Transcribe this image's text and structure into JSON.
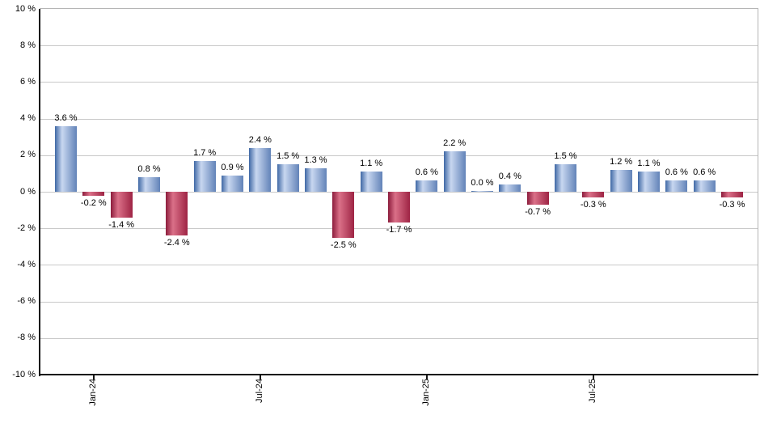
{
  "chart_data": {
    "type": "bar",
    "title": "",
    "unit": "%",
    "ylim": [
      -10,
      10
    ],
    "y_tick_step": 2,
    "y_tick_labels": [
      "10 %",
      "8 %",
      "6 %",
      "4 %",
      "2 %",
      "0 %",
      "-2 %",
      "-4 %",
      "-6 %",
      "-8 %",
      "-10 %"
    ],
    "values": [
      3.6,
      -0.2,
      -1.4,
      0.8,
      -2.4,
      1.7,
      0.9,
      2.4,
      1.5,
      1.3,
      -2.5,
      1.1,
      -1.7,
      0.6,
      2.2,
      0.0,
      0.4,
      -0.7,
      1.5,
      -0.3,
      1.2,
      1.1,
      0.6,
      0.6,
      -0.3
    ],
    "bar_labels": [
      "3.6 %",
      "-0.2 %",
      "-1.4 %",
      "0.8 %",
      "-2.4 %",
      "1.7 %",
      "0.9 %",
      "2.4 %",
      "1.5 %",
      "1.3 %",
      "-2.5 %",
      "1.1 %",
      "-1.7 %",
      "0.6 %",
      "2.2 %",
      "0.0 %",
      "0.4 %",
      "-0.7 %",
      "1.5 %",
      "-0.3 %",
      "1.2 %",
      "1.1 %",
      "0.6 %",
      "0.6 %",
      "-0.3 %"
    ],
    "x_ticks": [
      {
        "bar_index": 1,
        "label": "Jan-24"
      },
      {
        "bar_index": 7,
        "label": "Jul-24"
      },
      {
        "bar_index": 13,
        "label": "Jan-25"
      },
      {
        "bar_index": 19,
        "label": "Jul-25"
      }
    ],
    "grid": true,
    "legend": "none",
    "colors": {
      "positive_bar_edge": "#3f68a5",
      "positive_bar_highlight": "#c8d7f0",
      "positive_bar_right": "#6283b8",
      "negative_bar_edge": "#8c1c3c",
      "negative_bar_highlight": "#da7088",
      "negative_bar_right": "#9e2444",
      "gridline": "#c9c9c9",
      "plot_border": "#b5b5b5",
      "axis": "#141414",
      "label_text": "#000000",
      "background": "#ffffff"
    }
  }
}
